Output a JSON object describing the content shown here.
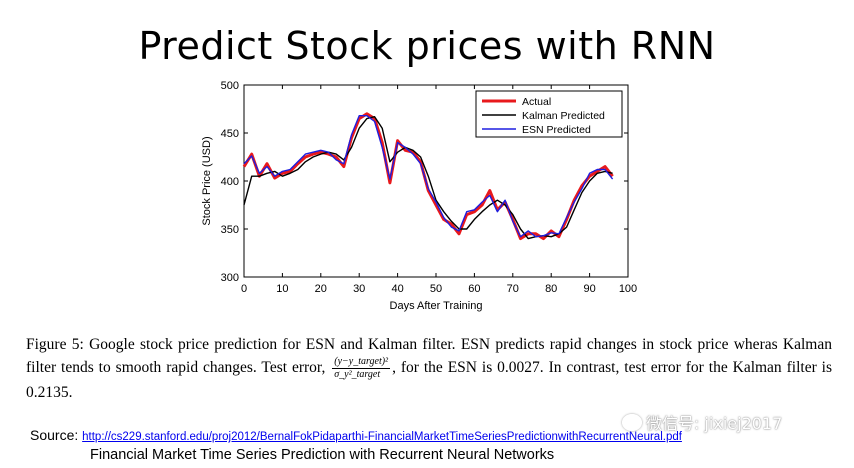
{
  "slide": {
    "title": "Predict Stock prices with RNN"
  },
  "chart_data": {
    "type": "line",
    "title": "",
    "xlabel": "Days After Training",
    "ylabel": "Stock Price (USD)",
    "xlim": [
      0,
      100
    ],
    "ylim": [
      300,
      500
    ],
    "x_ticks": [
      "0",
      "10",
      "20",
      "30",
      "40",
      "50",
      "60",
      "70",
      "80",
      "90",
      "100"
    ],
    "y_ticks": [
      "300",
      "350",
      "400",
      "450",
      "500"
    ],
    "grid": false,
    "legend_position": "top-right",
    "series": [
      {
        "name": "Actual",
        "color": "#e8191c",
        "x": [
          0,
          2,
          4,
          6,
          8,
          10,
          12,
          14,
          16,
          18,
          20,
          22,
          24,
          26,
          28,
          30,
          32,
          34,
          36,
          38,
          40,
          42,
          44,
          46,
          48,
          50,
          52,
          54,
          56,
          58,
          60,
          62,
          64,
          66,
          68,
          70,
          72,
          74,
          76,
          78,
          80,
          82,
          84,
          86,
          88,
          90,
          92,
          94,
          96
        ],
        "y": [
          415,
          428,
          405,
          418,
          403,
          408,
          410,
          418,
          425,
          428,
          430,
          428,
          425,
          415,
          445,
          465,
          470,
          465,
          440,
          398,
          442,
          432,
          430,
          420,
          390,
          375,
          360,
          355,
          345,
          365,
          368,
          375,
          390,
          370,
          378,
          360,
          340,
          345,
          345,
          340,
          348,
          342,
          360,
          380,
          395,
          405,
          410,
          415,
          405
        ]
      },
      {
        "name": "Kalman Predicted",
        "color": "#000000",
        "x": [
          0,
          2,
          4,
          6,
          8,
          10,
          12,
          14,
          16,
          18,
          20,
          22,
          24,
          26,
          28,
          30,
          32,
          34,
          36,
          38,
          40,
          42,
          44,
          46,
          48,
          50,
          52,
          54,
          56,
          58,
          60,
          62,
          64,
          66,
          68,
          70,
          72,
          74,
          76,
          78,
          80,
          82,
          84,
          86,
          88,
          90,
          92,
          94,
          96
        ],
        "y": [
          375,
          405,
          405,
          408,
          410,
          405,
          408,
          412,
          420,
          425,
          428,
          430,
          428,
          422,
          435,
          455,
          465,
          467,
          455,
          420,
          430,
          435,
          432,
          425,
          405,
          380,
          368,
          358,
          350,
          350,
          360,
          368,
          375,
          380,
          375,
          365,
          350,
          340,
          342,
          343,
          342,
          345,
          352,
          370,
          388,
          400,
          408,
          410,
          408
        ]
      },
      {
        "name": "ESN Predicted",
        "color": "#1e1ee0",
        "x": [
          0,
          2,
          4,
          6,
          8,
          10,
          12,
          14,
          16,
          18,
          20,
          22,
          24,
          26,
          28,
          30,
          32,
          34,
          36,
          38,
          40,
          42,
          44,
          46,
          48,
          50,
          52,
          54,
          56,
          58,
          60,
          62,
          64,
          66,
          68,
          70,
          72,
          74,
          76,
          78,
          80,
          82,
          84,
          86,
          88,
          90,
          92,
          94,
          96
        ],
        "y": [
          418,
          426,
          408,
          415,
          405,
          410,
          412,
          420,
          428,
          430,
          432,
          430,
          422,
          418,
          448,
          468,
          468,
          462,
          435,
          402,
          440,
          435,
          428,
          418,
          392,
          378,
          362,
          352,
          348,
          368,
          370,
          378,
          385,
          368,
          380,
          358,
          342,
          348,
          342,
          343,
          346,
          345,
          362,
          378,
          392,
          408,
          412,
          412,
          402
        ]
      }
    ]
  },
  "caption": {
    "part1": "Figure 5:  Google stock price prediction for ESN and Kalman filter.  ESN predicts rapid changes in stock price wheras Kalman filter tends to smooth rapid changes. Test error, ",
    "frac_numerator": "(y−y_target)²",
    "frac_denominator": "σ_y²_target",
    "part2": ", for the ESN is 0.0027. In contrast, test error for the Kalman filter is 0.2135."
  },
  "source": {
    "label": "Source:",
    "url": "http://cs229.stanford.edu/proj2012/BernalFokPidaparthi-FinancialMarketTimeSeriesPredictionwithRecurrentNeural.pdf",
    "paper_title": "Financial Market Time Series Prediction with Recurrent Neural Networks"
  },
  "watermark": {
    "text": "微信号: jixiej2017"
  }
}
